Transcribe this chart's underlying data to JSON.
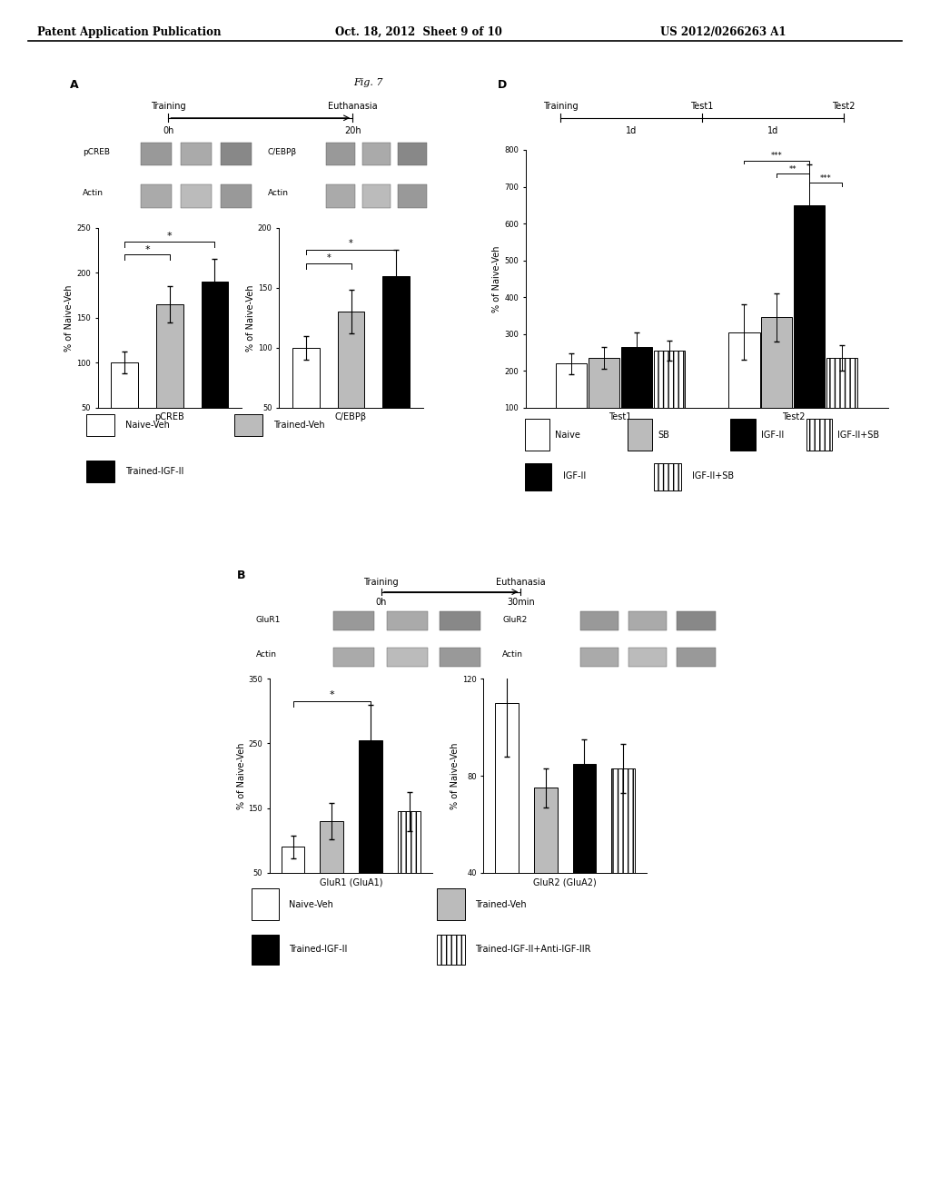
{
  "header_left": "Patent Application Publication",
  "header_center": "Oct. 18, 2012  Sheet 9 of 10",
  "header_right": "US 2012/0266263 A1",
  "fig_label": "Fig. 7",
  "panel_A_label": "A",
  "panel_D_label": "D",
  "panel_B_label": "B",
  "bar_chart_A_pCREB": {
    "values": [
      100,
      165,
      190
    ],
    "errors": [
      12,
      20,
      25
    ],
    "colors": [
      "white",
      "#bbbbbb",
      "black"
    ],
    "hatches": [
      "",
      "",
      ""
    ],
    "ylabel": "% of Naive-Veh",
    "ylim": [
      50,
      250
    ],
    "yticks": [
      50,
      100,
      150,
      200,
      250
    ],
    "xlabel": "pCREB"
  },
  "bar_chart_A_CEBP": {
    "values": [
      100,
      130,
      160
    ],
    "errors": [
      10,
      18,
      22
    ],
    "colors": [
      "white",
      "#bbbbbb",
      "black"
    ],
    "hatches": [
      "",
      "",
      ""
    ],
    "ylabel": "% of Naive-Veh",
    "ylim": [
      50,
      200
    ],
    "yticks": [
      50,
      100,
      150,
      200
    ],
    "xlabel": "C/EBPβ"
  },
  "bar_chart_D": {
    "series": [
      "Naive",
      "SB",
      "IGF-II",
      "IGF-II+SB"
    ],
    "values_test1": [
      220,
      235,
      265,
      255
    ],
    "values_test2": [
      305,
      345,
      650,
      235
    ],
    "errors_test1": [
      28,
      30,
      38,
      28
    ],
    "errors_test2": [
      75,
      65,
      110,
      35
    ],
    "colors": [
      "white",
      "#bbbbbb",
      "black",
      "white"
    ],
    "hatches": [
      "",
      "",
      "",
      "|||"
    ],
    "ylabel": "% of Naive-Veh",
    "ylim": [
      100,
      800
    ],
    "yticks": [
      100,
      200,
      300,
      400,
      500,
      600,
      700,
      800
    ]
  },
  "bar_chart_B_GluR1": {
    "values": [
      90,
      130,
      255,
      145
    ],
    "errors": [
      18,
      28,
      55,
      30
    ],
    "colors": [
      "white",
      "#bbbbbb",
      "black",
      "white"
    ],
    "hatches": [
      "",
      "",
      "",
      "|||"
    ],
    "ylabel": "% of Naive-Veh",
    "ylim": [
      50,
      350
    ],
    "yticks": [
      50,
      150,
      250,
      350
    ],
    "xlabel": "GluR1 (GluA1)"
  },
  "bar_chart_B_GluR2": {
    "values": [
      110,
      75,
      85,
      83
    ],
    "errors": [
      22,
      8,
      10,
      10
    ],
    "colors": [
      "white",
      "#bbbbbb",
      "black",
      "white"
    ],
    "hatches": [
      "",
      "",
      "",
      "|||"
    ],
    "ylabel": "% of Naive-Veh",
    "ylim": [
      40,
      120
    ],
    "yticks": [
      40,
      80,
      120
    ],
    "xlabel": "GluR2 (GluA2)"
  },
  "legend_A_entries": [
    "Naive-Veh",
    "Trained-Veh",
    "Trained-IGF-II"
  ],
  "legend_A_colors": [
    "white",
    "#bbbbbb",
    "black"
  ],
  "legend_A_hatches": [
    "",
    "",
    ""
  ],
  "legend_D_entries": [
    "Naive",
    "SB",
    "IGF-II",
    "IGF-II+SB"
  ],
  "legend_D_colors": [
    "white",
    "#bbbbbb",
    "black",
    "white"
  ],
  "legend_D_hatches": [
    "",
    "",
    "",
    "|||"
  ],
  "legend_B_entries": [
    "Naive-Veh",
    "Trained-Veh",
    "Trained-IGF-II",
    "Trained-IGF-II+Anti-IGF-IIR"
  ],
  "legend_B_colors": [
    "white",
    "#bbbbbb",
    "black",
    "white"
  ],
  "legend_B_hatches": [
    "",
    "",
    "",
    "|||"
  ]
}
